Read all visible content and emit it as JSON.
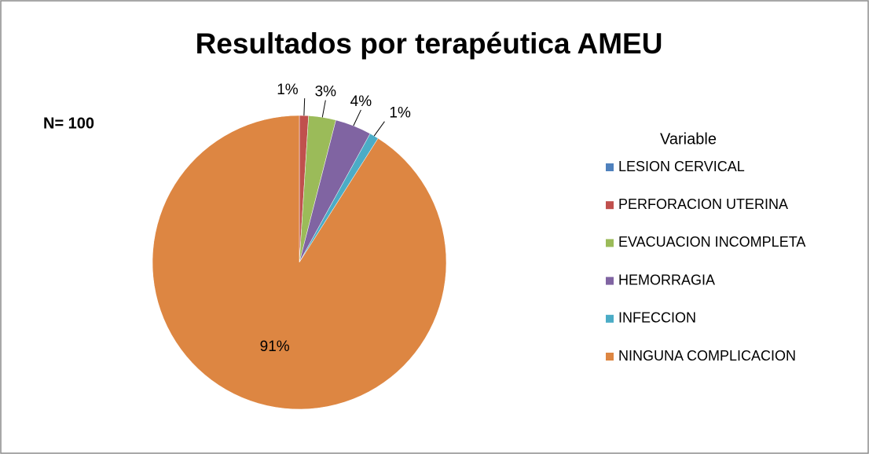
{
  "chart_data": {
    "type": "pie",
    "title": "Resultados por terapéutica AMEU",
    "annotation": "N= 100",
    "legend_title": "Variable",
    "legend": "right",
    "categories": [
      "LESION CERVICAL",
      "PERFORACION UTERINA",
      "EVACUACION INCOMPLETA",
      "HEMORRAGIA",
      "INFECCION",
      "NINGUNA COMPLICACION"
    ],
    "values": [
      0,
      1,
      3,
      4,
      1,
      91
    ],
    "value_labels": [
      null,
      "1%",
      "3%",
      "4%",
      "1%",
      "91%"
    ],
    "colors": [
      "#4f81bd",
      "#c0504d",
      "#9bbb59",
      "#8064a2",
      "#4bacc6",
      "#dd8642"
    ]
  }
}
